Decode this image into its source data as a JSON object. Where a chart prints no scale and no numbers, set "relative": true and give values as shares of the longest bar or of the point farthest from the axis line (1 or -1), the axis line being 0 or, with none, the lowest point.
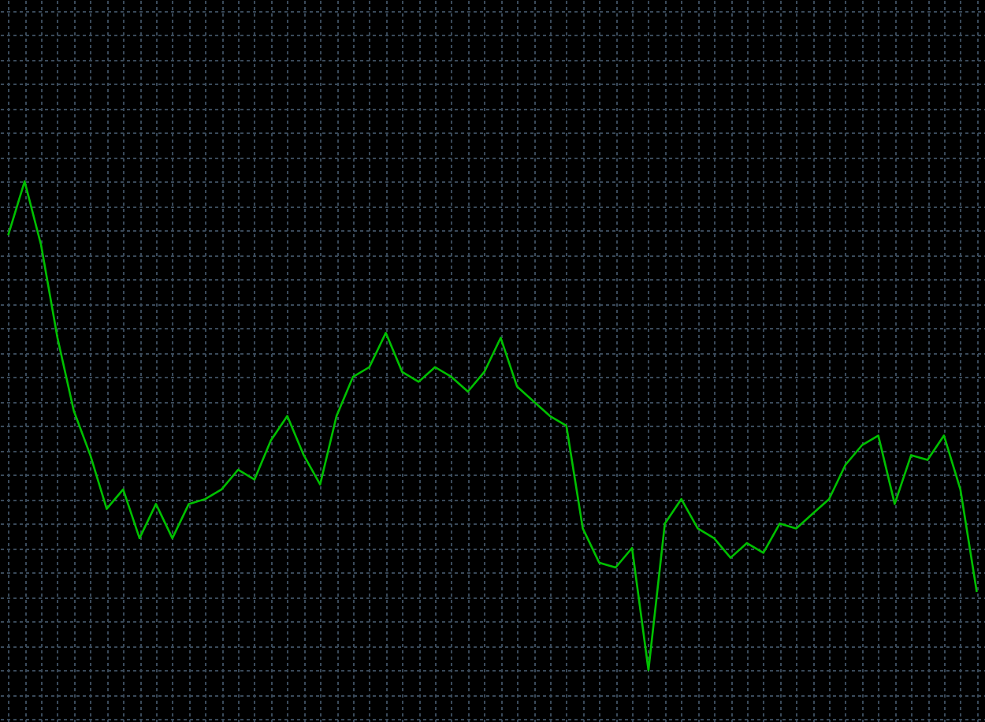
{
  "chart_data": {
    "type": "line",
    "relative": true,
    "grid": true,
    "categories": [
      null,
      null,
      null,
      null,
      null,
      null,
      null,
      null,
      null,
      null,
      null,
      null,
      null,
      null,
      null,
      null,
      null,
      null,
      null,
      null,
      null,
      null,
      null,
      null,
      null,
      null,
      null,
      null,
      null,
      null,
      null,
      null,
      null,
      null,
      null,
      null,
      null,
      null,
      null,
      null,
      null,
      null,
      null,
      null,
      null,
      null,
      null,
      null,
      null,
      null,
      null,
      null,
      null,
      null,
      null,
      null,
      null,
      null,
      null,
      null
    ],
    "series": [
      {
        "color": "#00c000",
        "values": [
          0.89,
          1.0,
          0.87,
          0.68,
          0.53,
          0.44,
          0.33,
          0.37,
          0.27,
          0.34,
          0.27,
          0.34,
          0.35,
          0.37,
          0.41,
          0.39,
          0.47,
          0.52,
          0.44,
          0.38,
          0.52,
          0.6,
          0.62,
          0.69,
          0.61,
          0.59,
          0.62,
          0.6,
          0.57,
          0.61,
          0.68,
          0.58,
          0.55,
          0.52,
          0.5,
          0.29,
          0.22,
          0.21,
          0.25,
          0.0,
          0.3,
          0.35,
          0.29,
          0.27,
          0.23,
          0.26,
          0.24,
          0.3,
          0.29,
          0.32,
          0.35,
          0.42,
          0.46,
          0.48,
          0.34,
          0.44,
          0.43,
          0.48,
          0.37,
          0.16
        ]
      }
    ]
  }
}
